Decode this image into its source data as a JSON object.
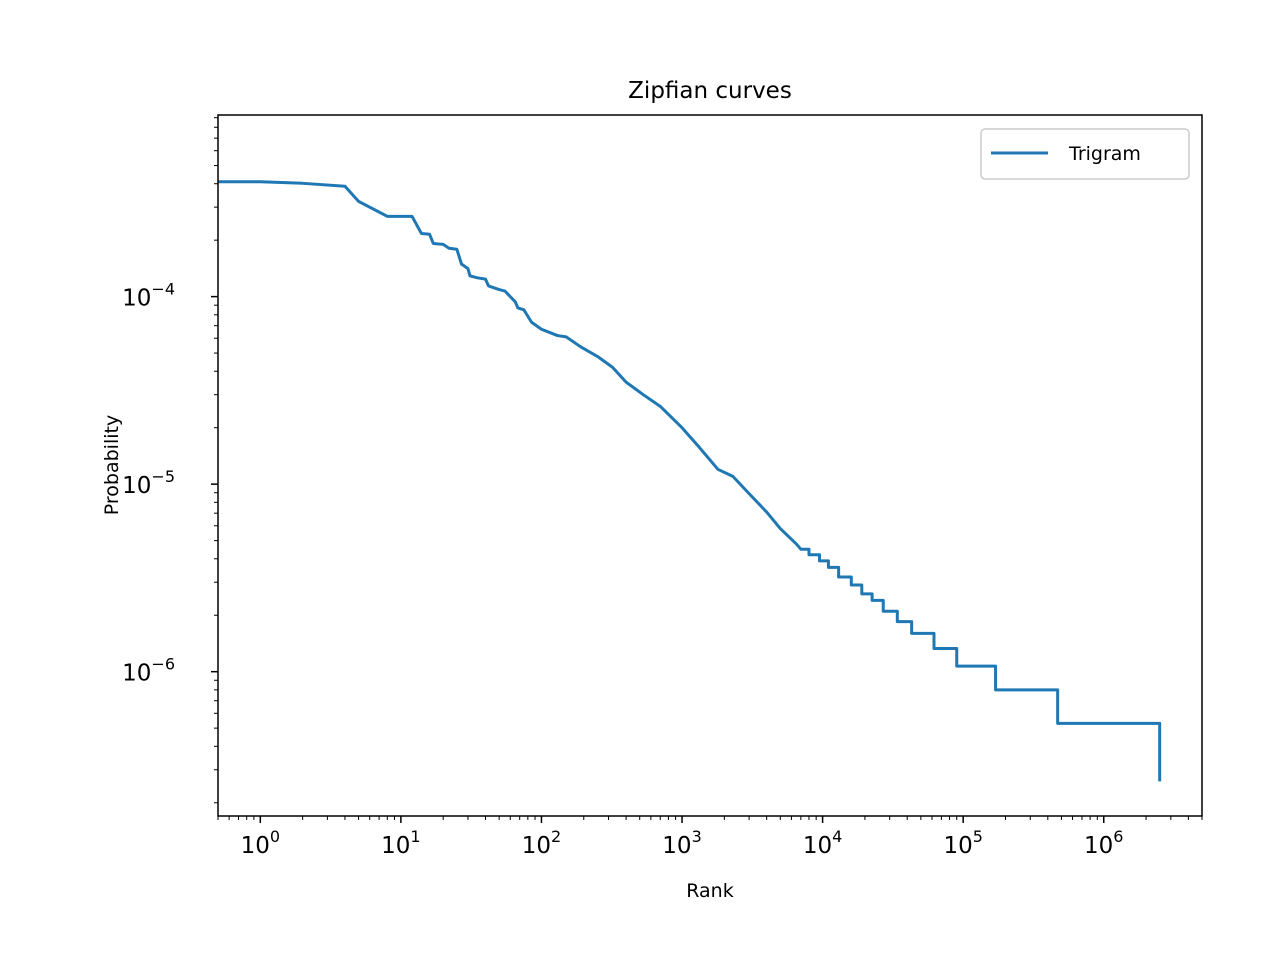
{
  "chart_data": {
    "type": "line",
    "title": "Zipfian curves",
    "xlabel": "Rank",
    "ylabel": "Probability",
    "xscale": "log",
    "yscale": "log",
    "xlim": [
      0.5,
      5000000
    ],
    "ylim": [
      1.7e-07,
      0.00093
    ],
    "grid": false,
    "legend_position": "upper right",
    "x_ticks": [
      {
        "value": 1,
        "base": "10",
        "exp": "0"
      },
      {
        "value": 10,
        "base": "10",
        "exp": "1"
      },
      {
        "value": 100,
        "base": "10",
        "exp": "2"
      },
      {
        "value": 1000,
        "base": "10",
        "exp": "3"
      },
      {
        "value": 10000,
        "base": "10",
        "exp": "4"
      },
      {
        "value": 100000,
        "base": "10",
        "exp": "5"
      },
      {
        "value": 1000000,
        "base": "10",
        "exp": "6"
      }
    ],
    "y_ticks": [
      {
        "value": 0.0001,
        "base": "10",
        "exp": "−4"
      },
      {
        "value": 1e-05,
        "base": "10",
        "exp": "−5"
      },
      {
        "value": 1e-06,
        "base": "10",
        "exp": "−6"
      }
    ],
    "series": [
      {
        "name": "Trigram",
        "color": "#1f77b4",
        "points": [
          [
            0.5,
            0.00041
          ],
          [
            1,
            0.00041
          ],
          [
            2,
            0.000402
          ],
          [
            4,
            0.000388
          ],
          [
            5,
            0.000322
          ],
          [
            8,
            0.000268
          ],
          [
            12,
            0.000268
          ],
          [
            14,
            0.000217
          ],
          [
            16,
            0.000215
          ],
          [
            17,
            0.000192
          ],
          [
            20,
            0.00019
          ],
          [
            22,
            0.000181
          ],
          [
            25,
            0.000179
          ],
          [
            27,
            0.000149
          ],
          [
            30,
            0.000141
          ],
          [
            31,
            0.000129
          ],
          [
            35,
            0.000126
          ],
          [
            40,
            0.000124
          ],
          [
            42,
            0.000114
          ],
          [
            50,
            0.000109
          ],
          [
            55,
            0.000107
          ],
          [
            60,
            0.0001
          ],
          [
            65,
            9.4e-05
          ],
          [
            68,
            8.7e-05
          ],
          [
            75,
            8.5e-05
          ],
          [
            85,
            7.3e-05
          ],
          [
            100,
            6.7e-05
          ],
          [
            130,
            6.2e-05
          ],
          [
            150,
            6.1e-05
          ],
          [
            190,
            5.4e-05
          ],
          [
            250,
            4.8e-05
          ],
          [
            320,
            4.2e-05
          ],
          [
            400,
            3.5e-05
          ],
          [
            530,
            3e-05
          ],
          [
            700,
            2.6e-05
          ],
          [
            1000,
            2e-05
          ],
          [
            1300,
            1.6e-05
          ],
          [
            1800,
            1.2e-05
          ],
          [
            2300,
            1.1e-05
          ],
          [
            3000,
            8.9e-06
          ],
          [
            4000,
            7.1e-06
          ],
          [
            5000,
            5.8e-06
          ],
          [
            6500,
            4.8e-06
          ],
          [
            7000,
            4.5e-06
          ],
          [
            8000,
            4.5e-06
          ],
          [
            8000,
            4.2e-06
          ],
          [
            9500,
            4.2e-06
          ],
          [
            9500,
            3.9e-06
          ],
          [
            11000,
            3.9e-06
          ],
          [
            11000,
            3.6e-06
          ],
          [
            13000,
            3.6e-06
          ],
          [
            13000,
            3.2e-06
          ],
          [
            16000,
            3.2e-06
          ],
          [
            16000,
            2.9e-06
          ],
          [
            19000,
            2.9e-06
          ],
          [
            19000,
            2.6e-06
          ],
          [
            22500,
            2.6e-06
          ],
          [
            22500,
            2.4e-06
          ],
          [
            27000,
            2.4e-06
          ],
          [
            27000,
            2.1e-06
          ],
          [
            34000,
            2.1e-06
          ],
          [
            34000,
            1.85e-06
          ],
          [
            43000,
            1.85e-06
          ],
          [
            43000,
            1.6e-06
          ],
          [
            62000,
            1.6e-06
          ],
          [
            62000,
            1.33e-06
          ],
          [
            90000,
            1.33e-06
          ],
          [
            90000,
            1.07e-06
          ],
          [
            170000,
            1.07e-06
          ],
          [
            170000,
            8e-07
          ],
          [
            470000,
            8e-07
          ],
          [
            470000,
            5.3e-07
          ],
          [
            2500000,
            5.3e-07
          ],
          [
            2500000,
            2.6e-07
          ]
        ]
      }
    ]
  }
}
